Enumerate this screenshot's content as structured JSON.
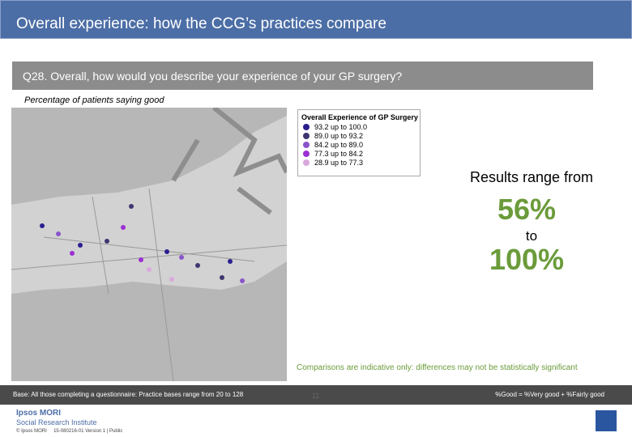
{
  "header": {
    "title": "Overall experience: how the CCG’s practices compare"
  },
  "question": "Q28. Overall, how would you describe your experience of your GP surgery?",
  "subtitle": "Percentage of patients saying good",
  "legend": {
    "title": "Overall Experience of GP Surgery",
    "items": [
      {
        "label": "93.2 up to 100.0",
        "color": "#2b1f8f"
      },
      {
        "label": "89.0 up to 93.2",
        "color": "#3d3670"
      },
      {
        "label": "84.2 up to 89.0",
        "color": "#8a55c9"
      },
      {
        "label": "77.3 up to 84.2",
        "color": "#9b2fd4"
      },
      {
        "label": "28.9 up to 77.3",
        "color": "#d9a8dc"
      }
    ]
  },
  "range": {
    "intro": "Results range from",
    "low": "56%",
    "mid": "to",
    "high": "100%"
  },
  "note": "Comparisons are indicative only: differences may not be statistically significant",
  "footer": {
    "base": "Base: All those completing a questionnaire: Practice bases range from 20 to 128",
    "definition": "%Good = %Very good + %Fairly good",
    "page": "11",
    "logo1": "Ipsos MORI",
    "logo2": "Social Research Institute",
    "copyright": "© Ipsos MORI     15-080216-01 Version 1 | Public"
  }
}
